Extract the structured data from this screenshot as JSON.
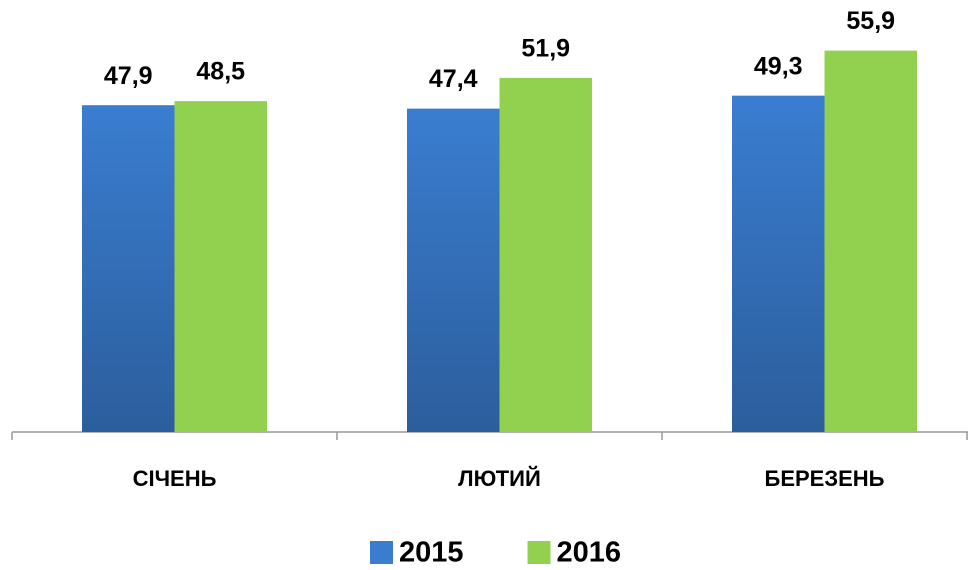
{
  "chart_data": {
    "type": "bar",
    "categories": [
      "СІЧЕНЬ",
      "ЛЮТИЙ",
      "БЕРЕЗЕНЬ"
    ],
    "series": [
      {
        "name": "2015",
        "color": "#3a7dd0",
        "values": [
          47.9,
          47.4,
          49.3
        ],
        "value_labels": [
          "47,9",
          "47,4",
          "49,3"
        ]
      },
      {
        "name": "2016",
        "color": "#92d050",
        "values": [
          48.5,
          51.9,
          55.9
        ],
        "value_labels": [
          "48,5",
          "51,9",
          "55,9"
        ]
      }
    ],
    "ylim": [
      0,
      62
    ],
    "legend": "bottom"
  }
}
